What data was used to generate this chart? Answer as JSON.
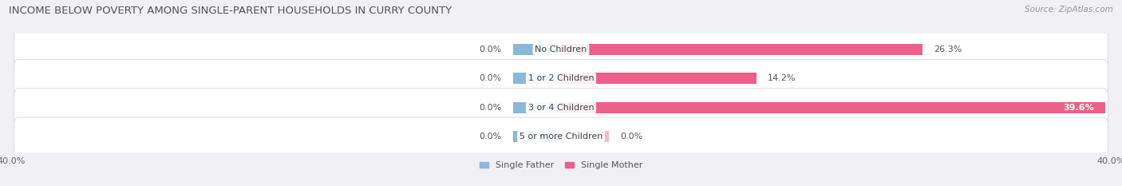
{
  "title": "INCOME BELOW POVERTY AMONG SINGLE-PARENT HOUSEHOLDS IN CURRY COUNTY",
  "source": "Source: ZipAtlas.com",
  "categories": [
    "No Children",
    "1 or 2 Children",
    "3 or 4 Children",
    "5 or more Children"
  ],
  "single_father": [
    0.0,
    0.0,
    0.0,
    0.0
  ],
  "single_mother": [
    26.3,
    14.2,
    39.6,
    0.0
  ],
  "father_color": "#8bb8d8",
  "mother_color": "#ee5f8a",
  "mother_color_light": "#f5b8cc",
  "fig_bg_color": "#f0f0f5",
  "row_bg_color": "#e8e8ee",
  "axis_max": 40.0,
  "axis_min": -40.0,
  "title_fontsize": 9.5,
  "source_fontsize": 7.5,
  "cat_fontsize": 8,
  "val_fontsize": 8,
  "tick_fontsize": 8,
  "legend_fontsize": 8
}
